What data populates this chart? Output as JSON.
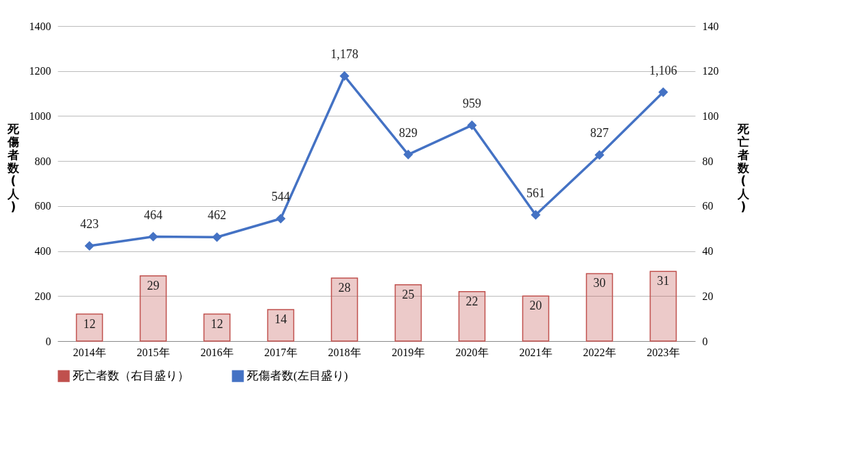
{
  "chart_data": {
    "type": "line",
    "categories": [
      "2014年",
      "2015年",
      "2016年",
      "2017年",
      "2018年",
      "2019年",
      "2020年",
      "2021年",
      "2022年",
      "2023年"
    ],
    "series": [
      {
        "name": "死亡者数（右目盛り）",
        "type": "bar",
        "axis": "y2",
        "color": "#c0504d",
        "values": [
          12,
          29,
          12,
          14,
          28,
          25,
          22,
          20,
          30,
          31
        ]
      },
      {
        "name": "死傷者数(左目盛り)",
        "color": "#4472c4",
        "values": [
          423,
          464,
          462,
          544,
          1178,
          829,
          959,
          561,
          827,
          1106
        ],
        "value_labels": [
          "423",
          "464",
          "462",
          "544",
          "1,178",
          "829",
          "959",
          "561",
          "827",
          "1,106"
        ]
      }
    ],
    "ylabel": "死傷者数(人)",
    "y2label": "死亡者数(人)",
    "ylim": [
      0,
      1400
    ],
    "yticks": [
      0,
      200,
      400,
      600,
      800,
      1000,
      1200,
      1400
    ],
    "y2lim": [
      0,
      140
    ],
    "y2ticks": [
      0,
      20,
      40,
      60,
      80,
      100,
      120,
      140
    ],
    "grid": "y",
    "legend": "bottom",
    "marker": "diamond",
    "data_labels": true
  }
}
